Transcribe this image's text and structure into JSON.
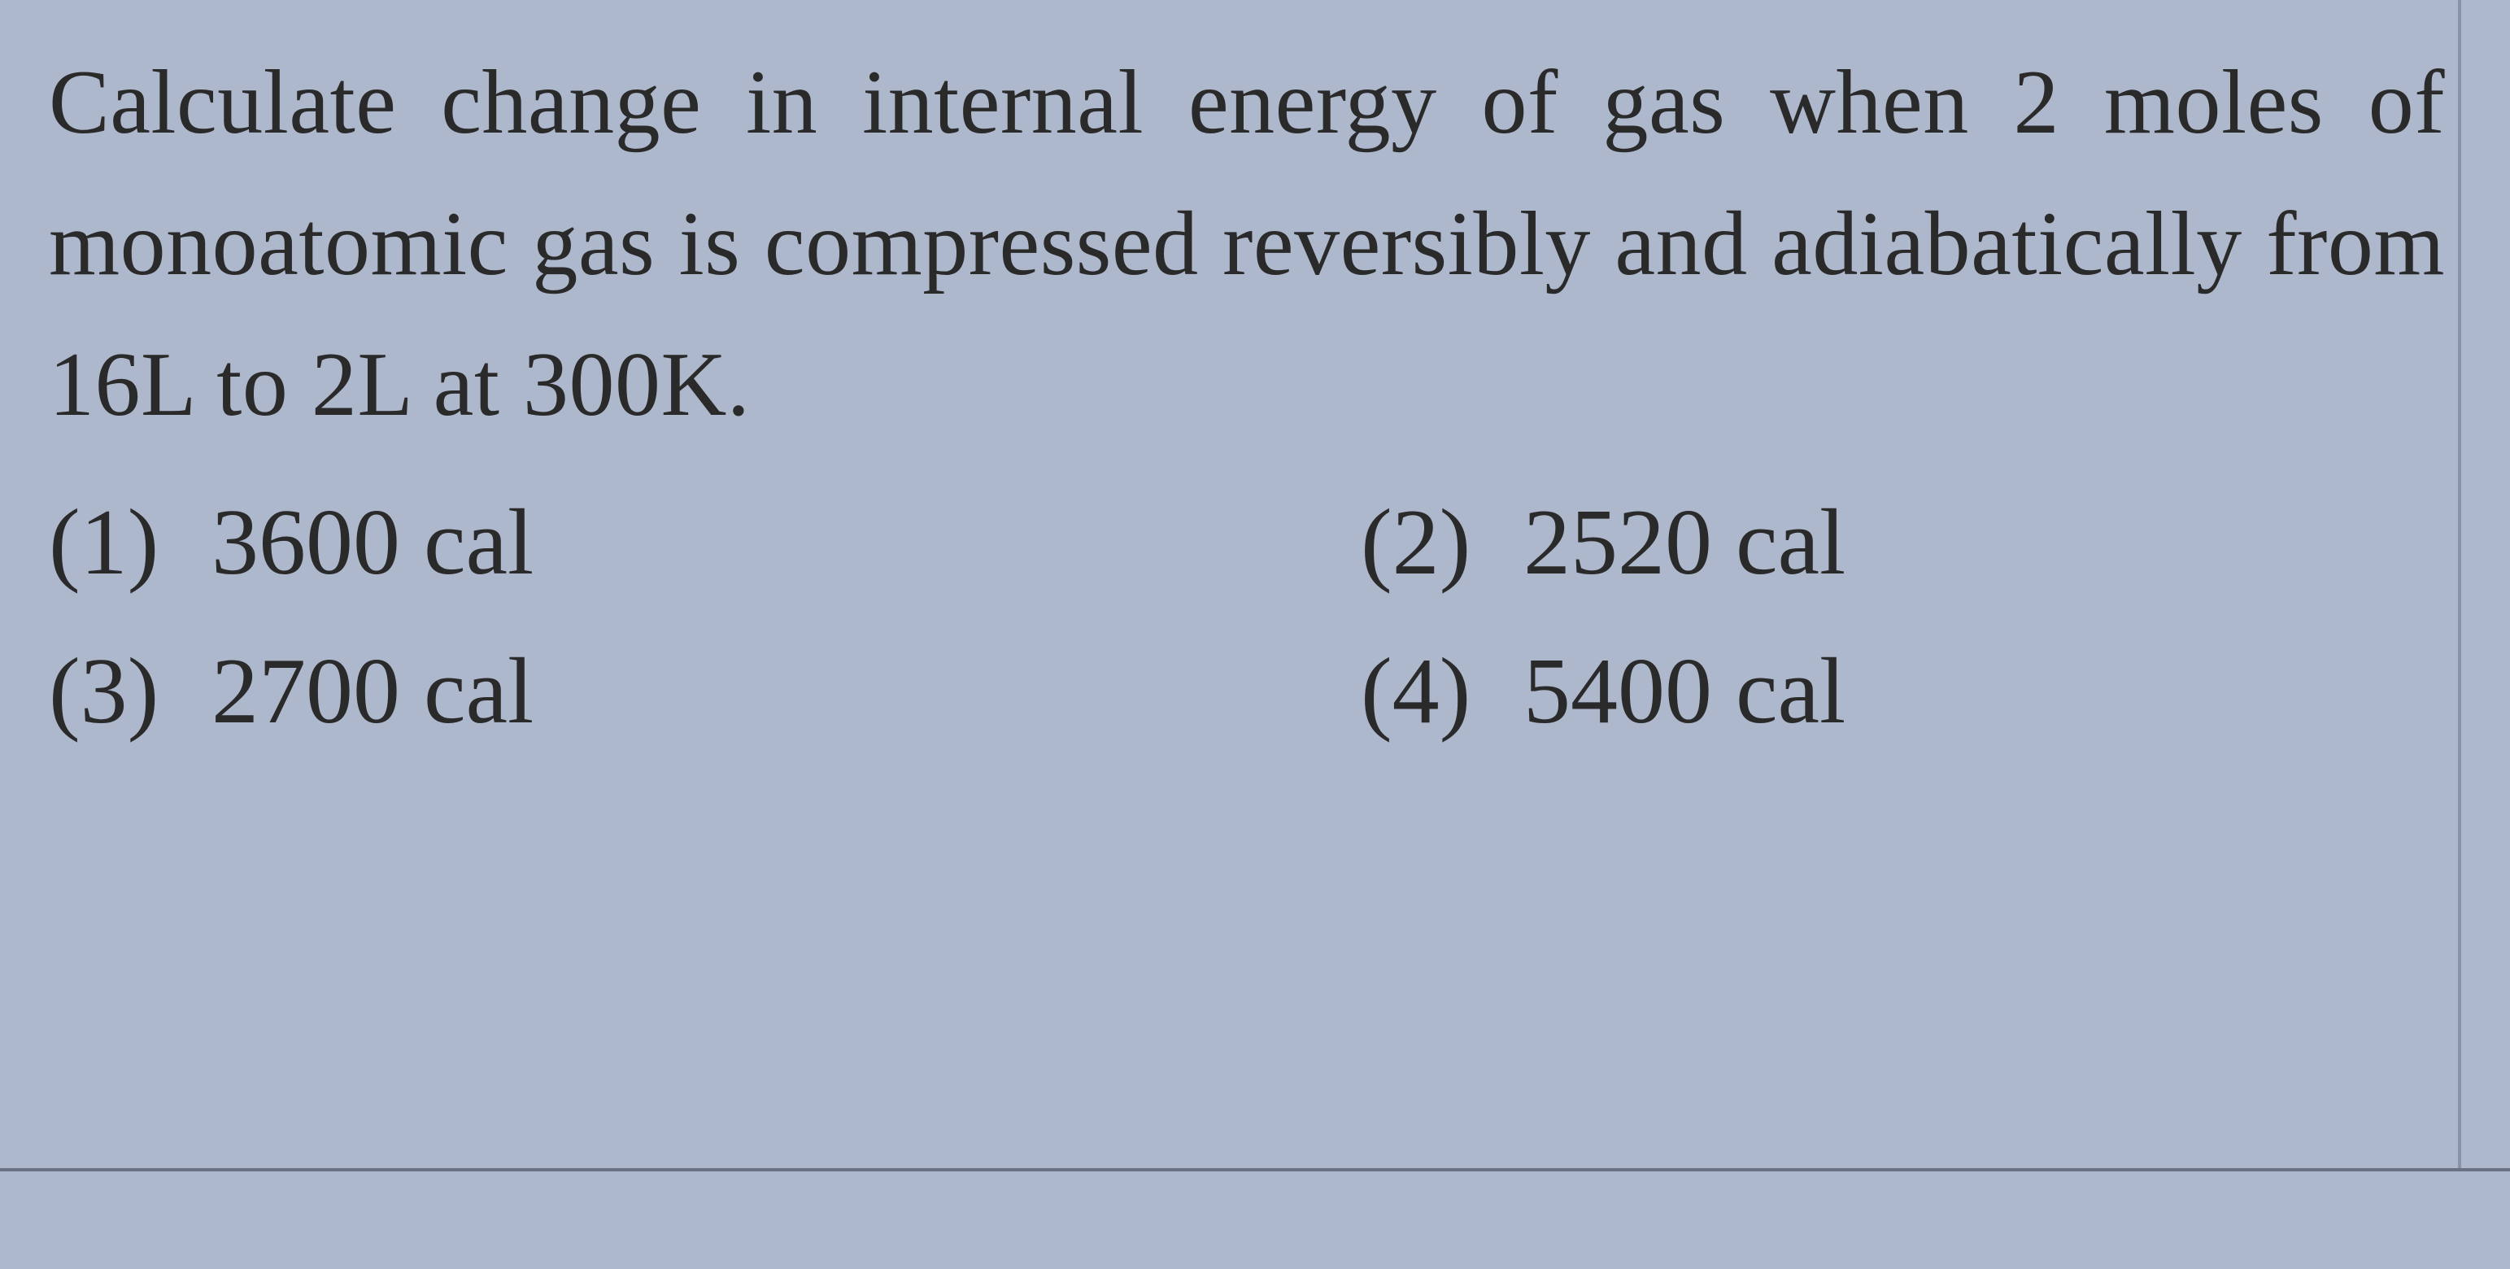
{
  "question": {
    "text": "Calculate change in internal energy of gas when 2 moles of monoatomic gas is compressed reversibly and adiabatically from 16L to 2L at 300K.",
    "font_size_pt": 84,
    "text_color": "#2a2a2a",
    "background_color": "#aeb8cd",
    "line_height": 1.55
  },
  "options": [
    {
      "number": "(1)",
      "value": "3600 cal"
    },
    {
      "number": "(2)",
      "value": "2520 cal"
    },
    {
      "number": "(3)",
      "value": "2700 cal"
    },
    {
      "number": "(4)",
      "value": "5400 cal"
    }
  ],
  "styling": {
    "option_font_size_pt": 87,
    "option_text_color": "#2a2a2a",
    "divider_color": "#6a7285",
    "border_color": "#8a92a5"
  }
}
